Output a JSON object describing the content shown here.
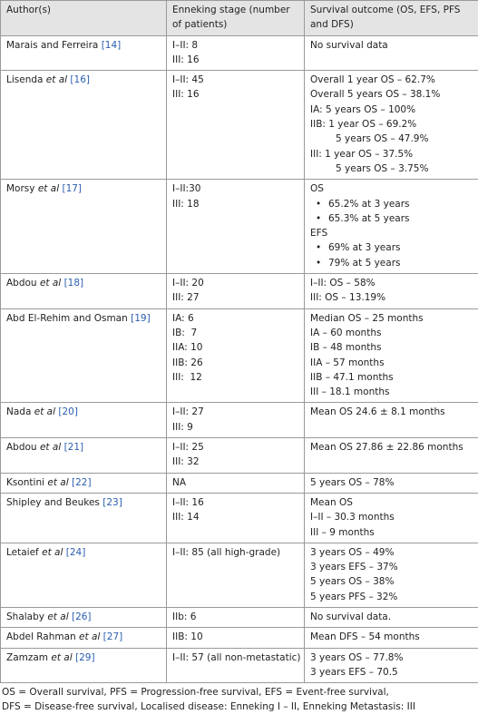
{
  "table": {
    "header": [
      "Author(s)",
      "Enneking stage (number of patients)",
      "Survival outcome (OS, EFS, PFS and DFS)"
    ],
    "rows": [
      {
        "author": "Marais and Ferreira",
        "ref": "[14]",
        "stage": [
          "I–II: 8",
          "III: 16"
        ],
        "outcome": [
          "No survival data"
        ]
      },
      {
        "author": "Lisenda",
        "et_al": "et al",
        "ref": "[16]",
        "stage": [
          "I–II: 45",
          "III: 16"
        ],
        "outcome": [
          "Overall 1 year OS – 62.7%",
          "Overall 5 years OS – 38.1%",
          "IA: 5 years OS – 100%",
          "IIB: 1 year OS – 69.2%",
          {
            "indent": "5 years OS – 47.9%"
          },
          "III: 1 year OS – 37.5%",
          {
            "indent": "5 years OS – 3.75%"
          }
        ]
      },
      {
        "author": "Morsy",
        "et_al": "et al",
        "ref": "[17]",
        "stage": [
          "I–II:30",
          "III: 18"
        ],
        "outcome": [
          "OS",
          {
            "bullet": "65.2% at 3 years"
          },
          {
            "bullet": "65.3% at 5 years"
          },
          "EFS",
          {
            "bullet": "69% at 3 years"
          },
          {
            "bullet": "79% at 5 years"
          }
        ]
      },
      {
        "author": "Abdou",
        "et_al": "et al",
        "ref": "[18]",
        "stage": [
          "I–II: 20",
          "III: 27"
        ],
        "outcome": [
          "I–II: OS – 58%",
          "III: OS – 13.19%"
        ]
      },
      {
        "author": "Abd El-Rehim and Osman",
        "ref": "[19]",
        "stage": [
          "IA: 6",
          "IB:  7",
          "IIA: 10",
          "IIB: 26",
          "III:  12"
        ],
        "outcome": [
          "Median OS – 25 months",
          "IA – 60 months",
          "IB – 48 months",
          "IIA – 57 months",
          "IIB – 47.1 months",
          "III – 18.1 months"
        ]
      },
      {
        "author": "Nada",
        "et_al": "et al",
        "ref": "[20]",
        "stage": [
          "I–II: 27",
          "III: 9"
        ],
        "outcome": [
          "Mean OS 24.6 ± 8.1 months"
        ]
      },
      {
        "author": "Abdou",
        "et_al": "et al",
        "ref": "[21]",
        "stage": [
          "I–II: 25",
          "III: 32"
        ],
        "outcome": [
          "Mean OS 27.86 ± 22.86 months"
        ]
      },
      {
        "author": "Ksontini",
        "et_al": "et al",
        "ref": "[22]",
        "stage": [
          "NA"
        ],
        "outcome": [
          "5 years OS – 78%"
        ]
      },
      {
        "author": "Shipley and Beukes",
        "ref": "[23]",
        "stage": [
          "I–II: 16",
          "III: 14"
        ],
        "outcome": [
          "Mean OS",
          "I–II – 30.3 months",
          "III – 9 months"
        ]
      },
      {
        "author": "Letaief",
        "et_al": "et al",
        "ref": "[24]",
        "stage": [
          "I–II: 85 (all high-grade)"
        ],
        "outcome": [
          "3 years OS – 49%",
          "3 years EFS – 37%",
          "5 years OS – 38%",
          "5 years PFS – 32%"
        ]
      },
      {
        "author": "Shalaby",
        "et_al": "et al",
        "ref": "[26]",
        "stage": [
          "IIb: 6"
        ],
        "outcome": [
          "No survival data."
        ]
      },
      {
        "author": "Abdel Rahman",
        "et_al": "et al",
        "ref": "[27]",
        "stage": [
          "IIB: 10"
        ],
        "outcome": [
          "Mean DFS – 54 months"
        ]
      },
      {
        "author": "Zamzam",
        "et_al": "et al",
        "ref": "[29]",
        "stage": [
          "I–II: 57 (all non-metastatic)"
        ],
        "outcome": [
          "3 years OS – 77.8%",
          "3 years EFS – 70.5"
        ]
      }
    ],
    "footnote": [
      "OS = Overall survival, PFS = Progression-free survival, EFS = Event-free survival,",
      "DFS = Disease-free survival, Localised disease: Enneking I – II, Enneking Metastasis: III"
    ]
  }
}
